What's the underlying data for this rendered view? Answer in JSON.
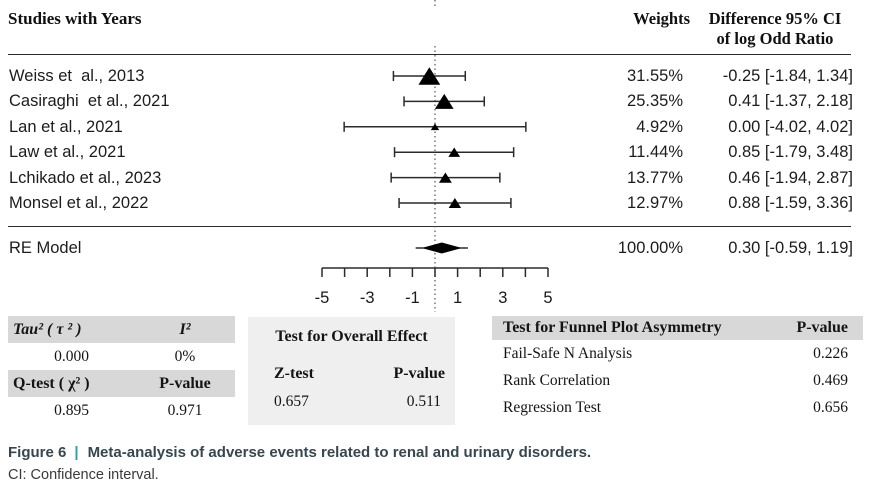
{
  "header": {
    "studies": "Studies with Years",
    "weights": "Weights",
    "difference_line1": "Difference 95% CI",
    "difference_line2": "of log Odd Ratio"
  },
  "chart_data": {
    "type": "forest",
    "x_axis": {
      "xlim": [
        -5,
        5
      ],
      "minor_tick_step": 1,
      "labeled_ticks": [
        -5,
        -3,
        -1,
        1,
        3,
        5
      ],
      "zero_reference_line": 0
    },
    "effect_measure": "log Odd Ratio",
    "studies": [
      {
        "label": "Weiss et  al., 2013",
        "weight": "31.55%",
        "weight_pct": 31.55,
        "estimate": -0.25,
        "ci_low": -1.84,
        "ci_high": 1.34,
        "ci_text": "-0.25 [-1.84, 1.34]"
      },
      {
        "label": "Casiraghi  et al., 2021",
        "weight": "25.35%",
        "weight_pct": 25.35,
        "estimate": 0.41,
        "ci_low": -1.37,
        "ci_high": 2.18,
        "ci_text": "0.41 [-1.37, 2.18]"
      },
      {
        "label": "Lan et al., 2021",
        "weight": "4.92%",
        "weight_pct": 4.92,
        "estimate": 0.0,
        "ci_low": -4.02,
        "ci_high": 4.02,
        "ci_text": "0.00 [-4.02, 4.02]"
      },
      {
        "label": "Law et al., 2021",
        "weight": "11.44%",
        "weight_pct": 11.44,
        "estimate": 0.85,
        "ci_low": -1.79,
        "ci_high": 3.48,
        "ci_text": "0.85 [-1.79, 3.48]"
      },
      {
        "label": "Lchikado et al., 2023",
        "weight": "13.77%",
        "weight_pct": 13.77,
        "estimate": 0.46,
        "ci_low": -1.94,
        "ci_high": 2.87,
        "ci_text": "0.46 [-1.94, 2.87]"
      },
      {
        "label": "Monsel et al., 2022",
        "weight": "12.97%",
        "weight_pct": 12.97,
        "estimate": 0.88,
        "ci_low": -1.59,
        "ci_high": 3.36,
        "ci_text": "0.88 [-1.59, 3.36]"
      }
    ],
    "summary": {
      "label": "RE Model",
      "weight": "100.00%",
      "estimate": 0.3,
      "ci_low": -0.59,
      "ci_high": 1.19,
      "ci_text": "0.30 [-0.59, 1.19]"
    }
  },
  "stats": {
    "heterogeneity": {
      "tau_label": "Tau² ( τ ² )",
      "tau_value": "0.000",
      "i2_label": "I²",
      "i2_value": "0%",
      "qtest_label": "Q-test ( χ² )",
      "qtest_value": "0.895",
      "pvalue_label": "P-value",
      "pvalue_value": "0.971"
    },
    "overall": {
      "title": "Test for Overall Effect",
      "ztest_label": "Z-test",
      "ztest_value": "0.657",
      "pvalue_label": "P-value",
      "pvalue_value": "0.511"
    },
    "funnel": {
      "title": "Test for Funnel Plot Asymmetry",
      "pvalue_label": "P-value",
      "rows": [
        {
          "label": "Fail-Safe N Analysis",
          "value": "0.226"
        },
        {
          "label": "Rank Correlation",
          "value": "0.469"
        },
        {
          "label": "Regression Test",
          "value": "0.656"
        }
      ]
    }
  },
  "caption": {
    "tag": "Figure 6",
    "separator": "|",
    "title": "Meta-analysis of adverse events related to renal and urinary disorders.",
    "note": "CI: Confidence interval."
  },
  "colors": {
    "table_header_bg": "#d8d8d8",
    "middle_panel_bg": "#efefef",
    "marker": "#000000",
    "caption_text": "#37474f",
    "caption_bar": "#2d9fb5"
  }
}
